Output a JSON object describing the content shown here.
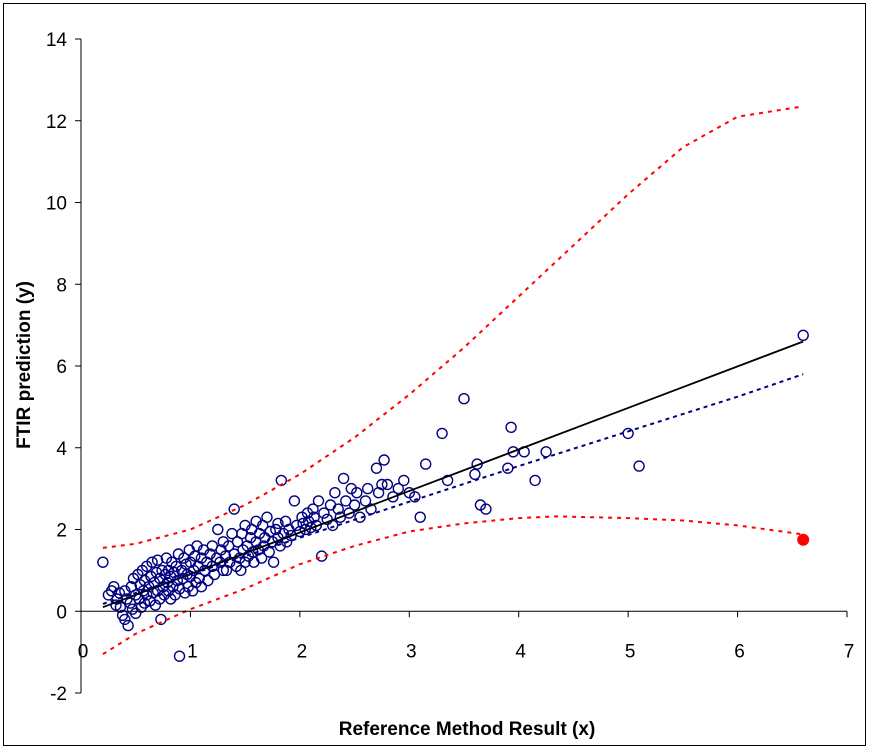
{
  "chart_data": {
    "type": "scatter",
    "title": "",
    "xlabel": "Reference Method Result (x)",
    "ylabel": "FTIR prediction (y)",
    "xlim": [
      0,
      7
    ],
    "ylim": [
      -2,
      14
    ],
    "x_ticks": [
      "0",
      "1",
      "2",
      "3",
      "4",
      "5",
      "6",
      "7"
    ],
    "y_ticks": [
      "-2",
      "0",
      "2",
      "4",
      "6",
      "8",
      "10",
      "12",
      "14"
    ],
    "grid": false,
    "legend": "none",
    "colors": {
      "points": "#000080",
      "fit_solid": "#000000",
      "fit_dashed": "#000080",
      "prediction_bounds": "#ff0000",
      "highlight_point": "#ff0000"
    },
    "series": [
      {
        "type": "scatter",
        "marker": "open-circle",
        "points": [
          [
            0.2,
            1.2
          ],
          [
            0.25,
            0.4
          ],
          [
            0.28,
            0.5
          ],
          [
            0.3,
            0.6
          ],
          [
            0.32,
            0.15
          ],
          [
            0.33,
            0.3
          ],
          [
            0.35,
            0.45
          ],
          [
            0.36,
            0.1
          ],
          [
            0.38,
            -0.1
          ],
          [
            0.4,
            0.5
          ],
          [
            0.4,
            -0.2
          ],
          [
            0.42,
            0.3
          ],
          [
            0.43,
            -0.35
          ],
          [
            0.45,
            0.2
          ],
          [
            0.46,
            0.6
          ],
          [
            0.47,
            0.05
          ],
          [
            0.48,
            0.8
          ],
          [
            0.5,
            0.4
          ],
          [
            0.5,
            -0.05
          ],
          [
            0.52,
            0.9
          ],
          [
            0.53,
            0.3
          ],
          [
            0.54,
            0.65
          ],
          [
            0.55,
            0.1
          ],
          [
            0.56,
            1.0
          ],
          [
            0.57,
            0.5
          ],
          [
            0.58,
            0.2
          ],
          [
            0.58,
            0.75
          ],
          [
            0.6,
            0.4
          ],
          [
            0.6,
            1.1
          ],
          [
            0.62,
            0.6
          ],
          [
            0.63,
            0.25
          ],
          [
            0.64,
            0.85
          ],
          [
            0.65,
            1.2
          ],
          [
            0.66,
            0.45
          ],
          [
            0.67,
            0.7
          ],
          [
            0.68,
            0.15
          ],
          [
            0.69,
            0.95
          ],
          [
            0.7,
            0.5
          ],
          [
            0.7,
            1.25
          ],
          [
            0.72,
            0.3
          ],
          [
            0.72,
            0.8
          ],
          [
            0.73,
            -0.2
          ],
          [
            0.74,
            1.0
          ],
          [
            0.75,
            0.6
          ],
          [
            0.76,
            0.4
          ],
          [
            0.77,
            0.9
          ],
          [
            0.78,
            1.3
          ],
          [
            0.79,
            0.7
          ],
          [
            0.8,
            0.5
          ],
          [
            0.8,
            1.0
          ],
          [
            0.82,
            0.3
          ],
          [
            0.82,
            0.85
          ],
          [
            0.83,
            1.2
          ],
          [
            0.84,
            0.6
          ],
          [
            0.85,
            0.95
          ],
          [
            0.86,
            0.4
          ],
          [
            0.87,
            1.1
          ],
          [
            0.88,
            0.75
          ],
          [
            0.89,
            1.4
          ],
          [
            0.9,
            0.55
          ],
          [
            0.9,
            -1.1
          ],
          [
            0.92,
            1.0
          ],
          [
            0.93,
            0.8
          ],
          [
            0.94,
            1.3
          ],
          [
            0.95,
            0.45
          ],
          [
            0.96,
            1.15
          ],
          [
            0.97,
            0.9
          ],
          [
            0.98,
            0.6
          ],
          [
            0.99,
            1.5
          ],
          [
            1.0,
            0.85
          ],
          [
            1.0,
            1.2
          ],
          [
            1.02,
            0.5
          ],
          [
            1.03,
            1.0
          ],
          [
            1.04,
            1.35
          ],
          [
            1.05,
            0.7
          ],
          [
            1.06,
            1.6
          ],
          [
            1.07,
            1.1
          ],
          [
            1.08,
            0.8
          ],
          [
            1.1,
            1.3
          ],
          [
            1.1,
            0.6
          ],
          [
            1.12,
            1.5
          ],
          [
            1.13,
            1.0
          ],
          [
            1.15,
            1.2
          ],
          [
            1.16,
            0.75
          ],
          [
            1.18,
            1.4
          ],
          [
            1.2,
            1.1
          ],
          [
            1.2,
            1.6
          ],
          [
            1.22,
            0.9
          ],
          [
            1.24,
            1.3
          ],
          [
            1.25,
            2.0
          ],
          [
            1.27,
            1.2
          ],
          [
            1.28,
            1.5
          ],
          [
            1.3,
            1.0
          ],
          [
            1.3,
            1.7
          ],
          [
            1.32,
            1.35
          ],
          [
            1.33,
            1.0
          ],
          [
            1.35,
            1.6
          ],
          [
            1.36,
            1.2
          ],
          [
            1.38,
            1.9
          ],
          [
            1.4,
            1.4
          ],
          [
            1.4,
            2.5
          ],
          [
            1.42,
            1.1
          ],
          [
            1.43,
            1.7
          ],
          [
            1.45,
            1.3
          ],
          [
            1.46,
            1.0
          ],
          [
            1.47,
            1.9
          ],
          [
            1.48,
            1.5
          ],
          [
            1.5,
            1.2
          ],
          [
            1.5,
            2.1
          ],
          [
            1.52,
            1.6
          ],
          [
            1.53,
            1.35
          ],
          [
            1.55,
            1.8
          ],
          [
            1.56,
            2.0
          ],
          [
            1.57,
            1.45
          ],
          [
            1.58,
            1.2
          ],
          [
            1.6,
            2.2
          ],
          [
            1.6,
            1.7
          ],
          [
            1.62,
            1.5
          ],
          [
            1.63,
            1.9
          ],
          [
            1.65,
            1.3
          ],
          [
            1.66,
            2.1
          ],
          [
            1.67,
            1.6
          ],
          [
            1.68,
            1.8
          ],
          [
            1.7,
            2.3
          ],
          [
            1.72,
            1.45
          ],
          [
            1.73,
            1.95
          ],
          [
            1.75,
            1.7
          ],
          [
            1.76,
            1.2
          ],
          [
            1.78,
            2.0
          ],
          [
            1.8,
            1.8
          ],
          [
            1.8,
            2.15
          ],
          [
            1.82,
            1.6
          ],
          [
            1.83,
            3.2
          ],
          [
            1.85,
            1.9
          ],
          [
            1.87,
            2.2
          ],
          [
            1.88,
            1.7
          ],
          [
            1.9,
            2.0
          ],
          [
            1.92,
            1.85
          ],
          [
            1.95,
            2.7
          ],
          [
            1.97,
            2.1
          ],
          [
            2.0,
            1.95
          ],
          [
            2.02,
            2.3
          ],
          [
            2.03,
            2.15
          ],
          [
            2.05,
            2.0
          ],
          [
            2.07,
            2.4
          ],
          [
            2.08,
            2.2
          ],
          [
            2.1,
            2.05
          ],
          [
            2.12,
            2.5
          ],
          [
            2.13,
            2.3
          ],
          [
            2.15,
            2.1
          ],
          [
            2.17,
            2.7
          ],
          [
            2.2,
            1.35
          ],
          [
            2.22,
            2.4
          ],
          [
            2.25,
            2.25
          ],
          [
            2.28,
            2.6
          ],
          [
            2.3,
            2.1
          ],
          [
            2.32,
            2.9
          ],
          [
            2.35,
            2.5
          ],
          [
            2.37,
            2.3
          ],
          [
            2.4,
            3.25
          ],
          [
            2.42,
            2.7
          ],
          [
            2.45,
            2.4
          ],
          [
            2.47,
            3.0
          ],
          [
            2.5,
            2.6
          ],
          [
            2.52,
            2.9
          ],
          [
            2.55,
            2.3
          ],
          [
            2.6,
            2.7
          ],
          [
            2.62,
            3.0
          ],
          [
            2.65,
            2.5
          ],
          [
            2.7,
            3.5
          ],
          [
            2.72,
            2.9
          ],
          [
            2.75,
            3.1
          ],
          [
            2.77,
            3.7
          ],
          [
            2.8,
            3.1
          ],
          [
            2.85,
            2.8
          ],
          [
            2.9,
            3.0
          ],
          [
            2.95,
            3.2
          ],
          [
            3.0,
            2.9
          ],
          [
            3.05,
            2.8
          ],
          [
            3.1,
            2.3
          ],
          [
            3.15,
            3.6
          ],
          [
            3.3,
            4.35
          ],
          [
            3.35,
            3.2
          ],
          [
            3.5,
            5.2
          ],
          [
            3.6,
            3.35
          ],
          [
            3.62,
            3.6
          ],
          [
            3.65,
            2.6
          ],
          [
            3.7,
            2.5
          ],
          [
            3.9,
            3.5
          ],
          [
            3.93,
            4.5
          ],
          [
            3.95,
            3.9
          ],
          [
            4.05,
            3.9
          ],
          [
            4.15,
            3.2
          ],
          [
            4.25,
            3.9
          ],
          [
            5.0,
            4.35
          ],
          [
            5.1,
            3.55
          ],
          [
            6.6,
            6.75
          ]
        ]
      },
      {
        "type": "line",
        "name": "",
        "style": "solid",
        "points": [
          [
            0.2,
            0.1
          ],
          [
            6.6,
            6.6
          ]
        ]
      },
      {
        "type": "line",
        "name": "",
        "style": "dashed",
        "points": [
          [
            0.2,
            0.18
          ],
          [
            1.0,
            0.9
          ],
          [
            2.0,
            1.8
          ],
          [
            3.0,
            2.68
          ],
          [
            4.0,
            3.55
          ],
          [
            5.0,
            4.4
          ],
          [
            6.0,
            5.25
          ],
          [
            6.6,
            5.8
          ]
        ]
      },
      {
        "type": "line",
        "name": "",
        "style": "dashed",
        "points": [
          [
            0.2,
            1.55
          ],
          [
            0.5,
            1.65
          ],
          [
            1.0,
            2.0
          ],
          [
            1.5,
            2.6
          ],
          [
            2.0,
            3.35
          ],
          [
            2.5,
            4.25
          ],
          [
            3.0,
            5.3
          ],
          [
            3.5,
            6.45
          ],
          [
            4.0,
            7.7
          ],
          [
            4.5,
            8.95
          ],
          [
            5.0,
            10.2
          ],
          [
            5.5,
            11.35
          ],
          [
            6.0,
            12.1
          ],
          [
            6.6,
            12.35
          ]
        ]
      },
      {
        "type": "line",
        "name": "",
        "style": "dashed",
        "points": [
          [
            0.2,
            -1.05
          ],
          [
            0.5,
            -0.55
          ],
          [
            1.0,
            0.05
          ],
          [
            1.5,
            0.55
          ],
          [
            2.0,
            1.15
          ],
          [
            2.5,
            1.6
          ],
          [
            3.0,
            1.95
          ],
          [
            3.5,
            2.15
          ],
          [
            4.0,
            2.28
          ],
          [
            4.35,
            2.32
          ],
          [
            5.0,
            2.28
          ],
          [
            5.5,
            2.22
          ],
          [
            6.0,
            2.1
          ],
          [
            6.6,
            1.88
          ]
        ]
      },
      {
        "type": "scatter",
        "name": "",
        "marker": "filled-circle",
        "points": [
          [
            6.6,
            1.75
          ]
        ]
      }
    ]
  }
}
